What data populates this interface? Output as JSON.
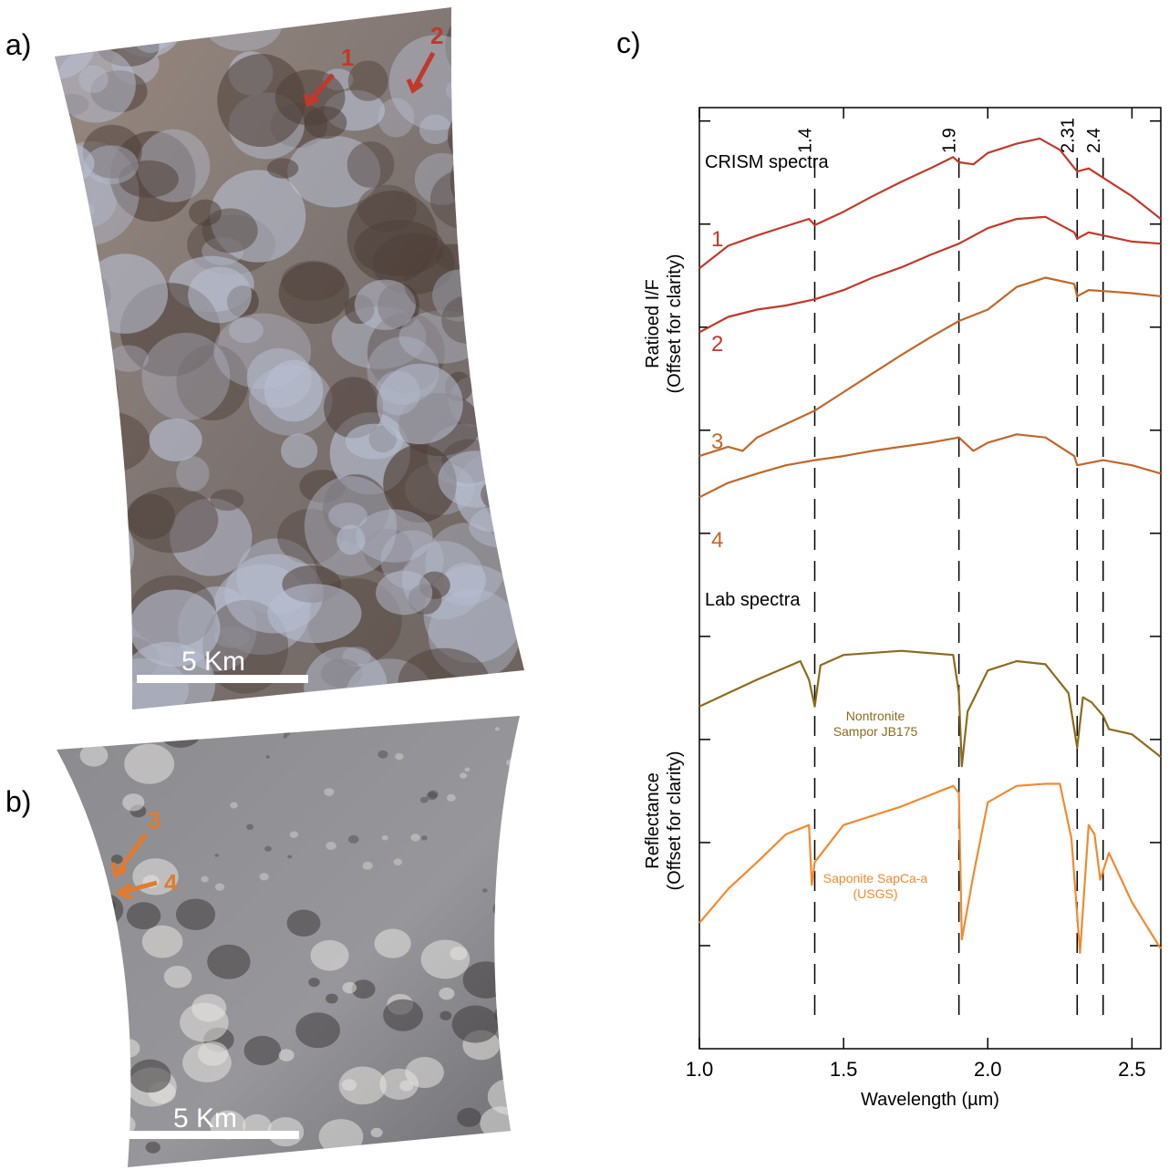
{
  "panels": [
    {
      "label": "a)",
      "scale_bar": "5 Km",
      "markers": [
        "1",
        "2"
      ]
    },
    {
      "label": "b)",
      "scale_bar": "5 Km",
      "markers": [
        "3",
        "4"
      ]
    }
  ],
  "chart_data": {
    "type": "line",
    "label": "c)",
    "x_label": "Wavelength (µm)",
    "y_label_top": [
      "Ratioed I/F",
      "(Offset for clarity)"
    ],
    "y_label_bottom": [
      "Reflectance",
      "(Offset for clarity)"
    ],
    "annotations": [
      "CRISM spectra",
      "Lab spectra"
    ],
    "xlim": [
      1.0,
      2.6
    ],
    "ylim": [
      0,
      9.13
    ],
    "xticks": [
      {
        "value": 1,
        "label": "1.0"
      },
      1.5,
      {
        "value": 2,
        "label": "2.0"
      },
      2.5
    ],
    "yticks": [
      1,
      2,
      3,
      4,
      5,
      6,
      7,
      8,
      9
    ],
    "ref_lines": [
      1.4,
      1.9,
      2.31,
      2.4
    ],
    "series": [
      {
        "name": "1",
        "color": "#c0392b",
        "x": [
          1.0,
          1.1,
          1.2,
          1.3,
          1.38,
          1.4,
          1.5,
          1.6,
          1.7,
          1.8,
          1.88,
          1.9,
          1.95,
          2.0,
          2.1,
          2.18,
          2.25,
          2.31,
          2.35,
          2.4,
          2.5,
          2.6
        ],
        "values": [
          7.57,
          7.79,
          7.89,
          7.98,
          8.05,
          7.99,
          8.12,
          8.27,
          8.41,
          8.54,
          8.65,
          8.6,
          8.58,
          8.69,
          8.78,
          8.83,
          8.72,
          8.51,
          8.54,
          8.45,
          8.27,
          8.05
        ]
      },
      {
        "name": "2",
        "color": "#c0392b",
        "x": [
          1.0,
          1.1,
          1.2,
          1.3,
          1.4,
          1.5,
          1.6,
          1.7,
          1.8,
          1.9,
          2.0,
          2.1,
          2.2,
          2.3,
          2.31,
          2.35,
          2.4,
          2.5,
          2.6
        ],
        "values": [
          6.95,
          7.1,
          7.17,
          7.21,
          7.27,
          7.36,
          7.48,
          7.58,
          7.7,
          7.81,
          7.96,
          8.05,
          8.07,
          7.92,
          7.86,
          7.92,
          7.89,
          7.83,
          7.81
        ]
      },
      {
        "name": "3",
        "color": "#c0672a",
        "x": [
          1.0,
          1.1,
          1.15,
          1.2,
          1.3,
          1.4,
          1.5,
          1.6,
          1.7,
          1.8,
          1.9,
          2.0,
          2.1,
          2.2,
          2.3,
          2.31,
          2.35,
          2.4,
          2.5,
          2.6
        ],
        "values": [
          5.75,
          5.84,
          5.8,
          5.93,
          6.06,
          6.19,
          6.37,
          6.55,
          6.73,
          6.9,
          7.06,
          7.17,
          7.39,
          7.48,
          7.42,
          7.3,
          7.36,
          7.35,
          7.33,
          7.3
        ]
      },
      {
        "name": "4",
        "color": "#c0672a",
        "x": [
          1.0,
          1.1,
          1.2,
          1.3,
          1.4,
          1.5,
          1.6,
          1.7,
          1.8,
          1.9,
          1.95,
          2.0,
          2.1,
          2.2,
          2.3,
          2.31,
          2.4,
          2.5,
          2.6
        ],
        "values": [
          5.35,
          5.49,
          5.58,
          5.66,
          5.71,
          5.75,
          5.8,
          5.84,
          5.88,
          5.93,
          5.8,
          5.88,
          5.96,
          5.93,
          5.75,
          5.66,
          5.71,
          5.66,
          5.58
        ]
      },
      {
        "name": "Nontronite Sampor JB175",
        "color": "#8b6b1e",
        "x": [
          1.0,
          1.2,
          1.35,
          1.38,
          1.4,
          1.42,
          1.5,
          1.7,
          1.88,
          1.9,
          1.91,
          1.93,
          2.0,
          2.1,
          2.2,
          2.28,
          2.31,
          2.33,
          2.36,
          2.4,
          2.42,
          2.5,
          2.6
        ],
        "values": [
          3.32,
          3.58,
          3.76,
          3.58,
          3.32,
          3.72,
          3.82,
          3.86,
          3.82,
          3.45,
          2.74,
          3.27,
          3.67,
          3.76,
          3.73,
          3.45,
          2.92,
          3.41,
          3.36,
          3.23,
          3.1,
          3.05,
          2.83
        ]
      },
      {
        "name": "Saponite SapCa-a (USGS)",
        "color": "#f08a30",
        "x": [
          1.0,
          1.1,
          1.2,
          1.3,
          1.38,
          1.39,
          1.4,
          1.5,
          1.7,
          1.88,
          1.9,
          1.91,
          1.95,
          2.0,
          2.1,
          2.2,
          2.25,
          2.29,
          2.32,
          2.35,
          2.37,
          2.39,
          2.42,
          2.5,
          2.6
        ],
        "values": [
          1.22,
          1.55,
          1.81,
          2.08,
          2.17,
          1.59,
          1.81,
          2.17,
          2.35,
          2.55,
          2.48,
          1.06,
          1.68,
          2.39,
          2.55,
          2.57,
          2.57,
          2.04,
          0.93,
          2.17,
          2.08,
          1.64,
          1.9,
          1.42,
          0.97
        ]
      }
    ]
  }
}
